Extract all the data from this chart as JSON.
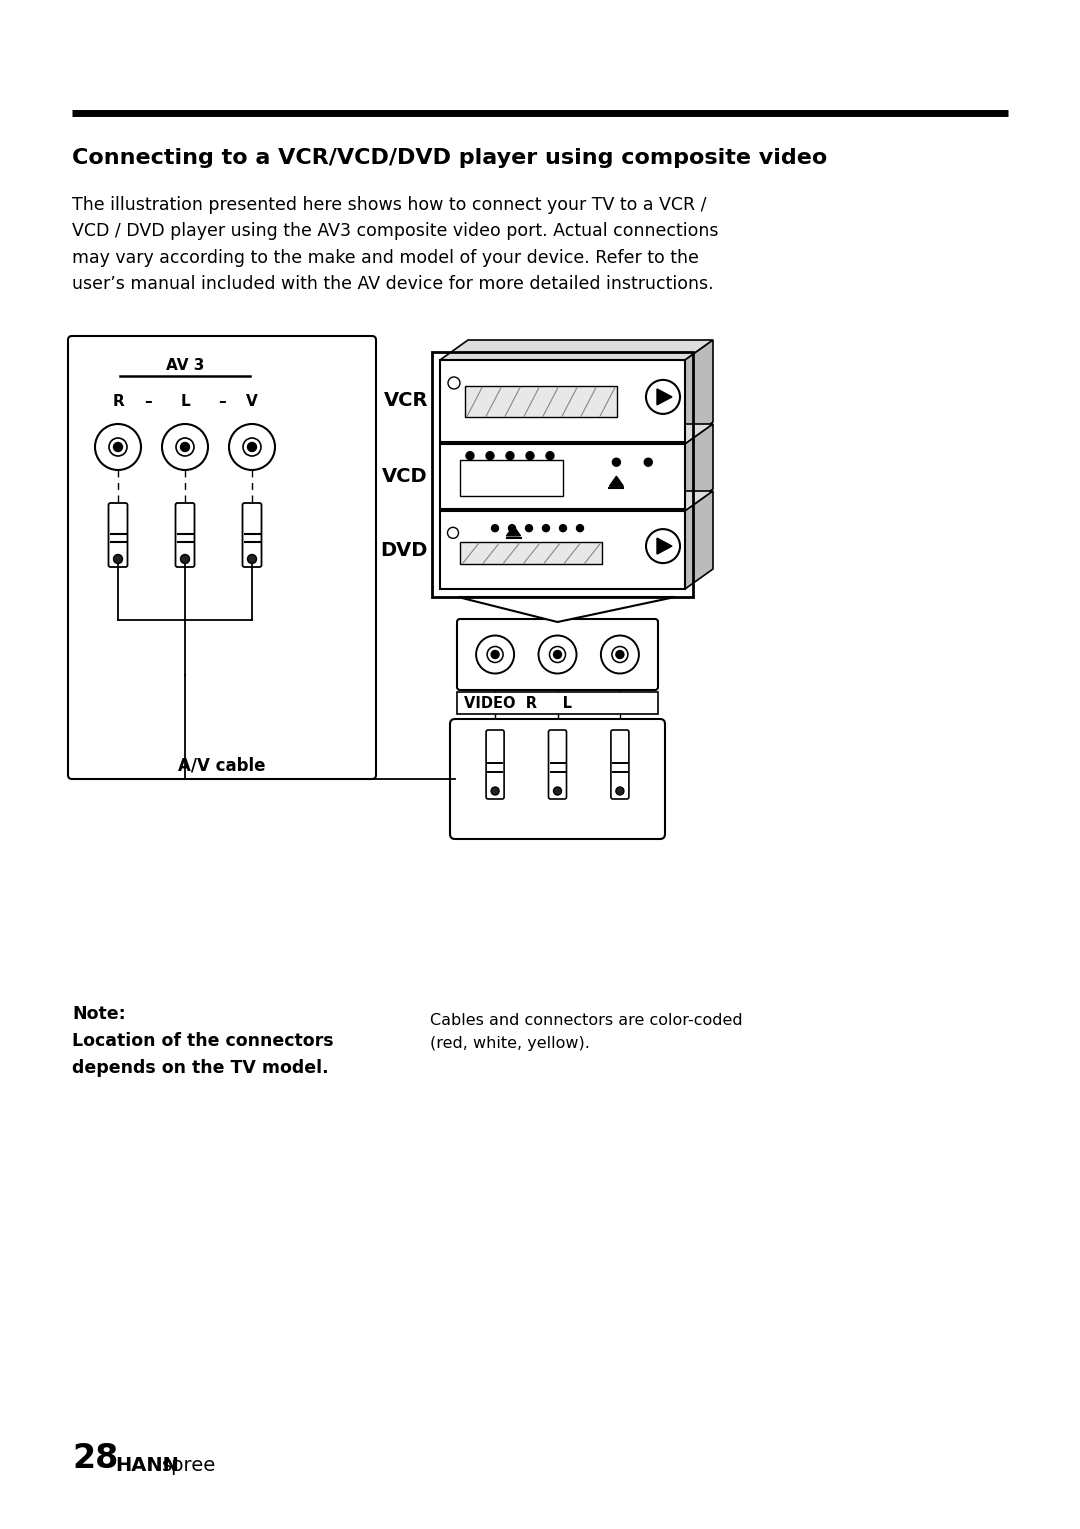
{
  "bg_color": "#ffffff",
  "title_bold": "Connecting to a VCR/VCD/DVD player using composite video",
  "body_text": "The illustration presented here shows how to connect your TV to a VCR /\nVCD / DVD player using the AV3 composite video port. Actual connections\nmay vary according to the make and model of your device. Refer to the\nuser’s manual included with the AV device for more detailed instructions.",
  "note_bold": "Note:\nLocation of the connectors\ndepends on the TV model.",
  "note_normal": "Cables and connectors are color-coded\n(red, white, yellow).",
  "footer_28": "28",
  "footer_hann": "HANN",
  "footer_spree": "spree",
  "fig_width": 10.8,
  "fig_height": 15.29
}
